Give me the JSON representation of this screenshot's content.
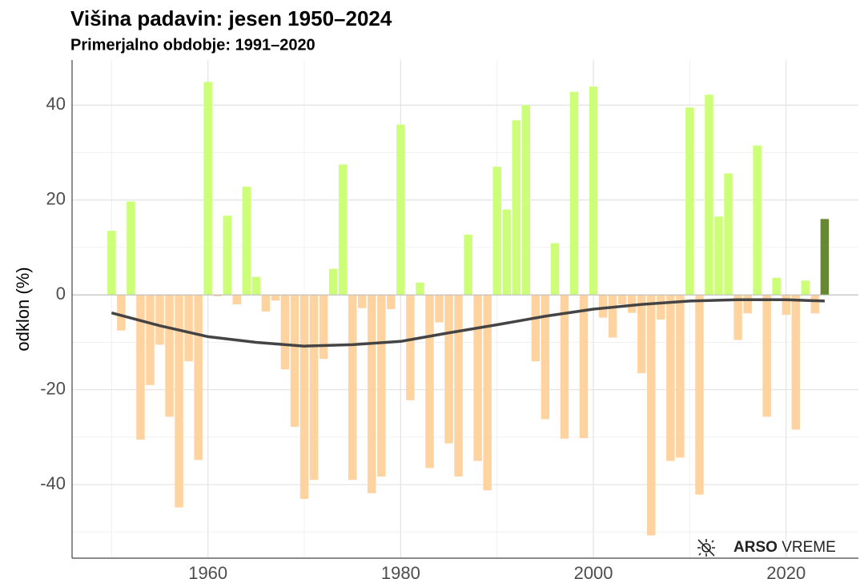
{
  "chart_data": {
    "type": "bar",
    "title": "Višina padavin: jesen 1950–2024",
    "subtitle": "Primerjalno obdobje: 1991–2020",
    "ylabel": "odklon (%)",
    "x": [
      1950,
      1951,
      1952,
      1953,
      1954,
      1955,
      1956,
      1957,
      1958,
      1959,
      1960,
      1961,
      1962,
      1963,
      1964,
      1965,
      1966,
      1967,
      1968,
      1969,
      1970,
      1971,
      1972,
      1973,
      1974,
      1975,
      1976,
      1977,
      1978,
      1979,
      1980,
      1981,
      1982,
      1983,
      1984,
      1985,
      1986,
      1987,
      1988,
      1989,
      1990,
      1991,
      1992,
      1993,
      1994,
      1995,
      1996,
      1997,
      1998,
      1999,
      2000,
      2001,
      2002,
      2003,
      2004,
      2005,
      2006,
      2007,
      2008,
      2009,
      2010,
      2011,
      2012,
      2013,
      2014,
      2015,
      2016,
      2017,
      2018,
      2019,
      2020,
      2021,
      2022,
      2023,
      2024
    ],
    "values": [
      13.5,
      -7.5,
      19.7,
      -30.5,
      -19,
      -10.5,
      -25.7,
      -44.8,
      -14,
      -34.8,
      44.9,
      -0.3,
      16.7,
      -2,
      22.8,
      3.8,
      -3.5,
      -1.2,
      -15.7,
      -27.8,
      -43,
      -39,
      -13.5,
      5.5,
      27.5,
      -39,
      -2.8,
      -41.8,
      -38.3,
      -3,
      35.9,
      -22.2,
      2.6,
      -36.5,
      -5.8,
      -31.3,
      -38.3,
      12.7,
      -35,
      -41.2,
      27,
      18,
      36.8,
      40,
      -14,
      -26.2,
      10.9,
      -30.3,
      42.8,
      -30.2,
      43.9,
      -4.8,
      -9,
      -2,
      -3.8,
      -16.5,
      -50.7,
      -5.2,
      -35,
      -34.3,
      39.5,
      -42.1,
      42.2,
      16.5,
      25.6,
      -9.5,
      -3.9,
      31.5,
      -25.7,
      3.6,
      -4.2,
      -28.4,
      3,
      -3.9,
      16
    ],
    "bar_colors": {
      "positive": "#ccff77",
      "negative": "#ffd3a0",
      "latest": "#668833"
    },
    "trend": {
      "color": "#444444",
      "x": [
        1950,
        1955,
        1960,
        1965,
        1970,
        1975,
        1980,
        1985,
        1990,
        1995,
        2000,
        2005,
        2010,
        2015,
        2020,
        2024
      ],
      "values": [
        -3.8,
        -6.5,
        -8.8,
        -10,
        -10.8,
        -10.5,
        -9.8,
        -8,
        -6.3,
        -4.5,
        -3,
        -2,
        -1.3,
        -1,
        -1,
        -1.3
      ]
    },
    "xlim": [
      1945.9,
      2027.5
    ],
    "xticks": [
      1960,
      1980,
      2000,
      2020
    ],
    "xminor": [
      1950,
      1970,
      1990,
      2010
    ],
    "ylim": [
      -55.5,
      49.5
    ],
    "yticks": [
      -40,
      -20,
      0,
      20,
      40
    ],
    "yminor": [
      -50,
      -30,
      -10,
      10,
      30
    ],
    "grid": true,
    "logo": {
      "bold": "ARSO",
      "text": "VREME"
    }
  }
}
